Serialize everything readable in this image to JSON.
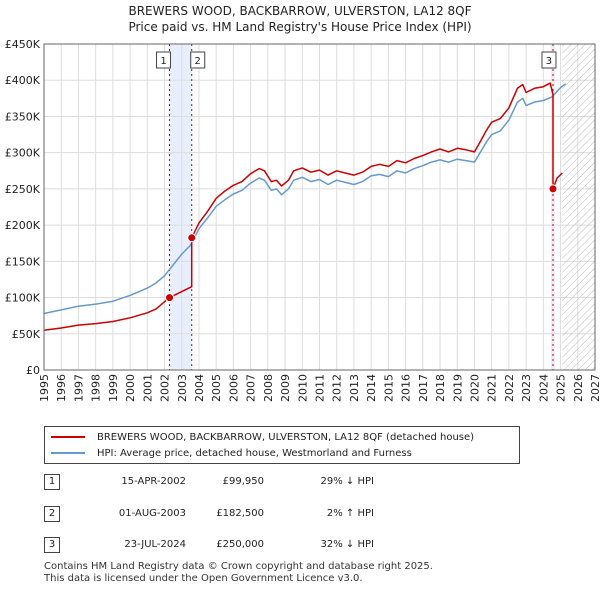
{
  "title_line1": "BREWERS WOOD, BACKBARROW, ULVERSTON, LA12 8QF",
  "title_line2": "Price paid vs. HM Land Registry's House Price Index (HPI)",
  "colors": {
    "property": "#cc0000",
    "hpi": "#6699cc",
    "grid": "#dddddd",
    "shade": "#e8eefb"
  },
  "chart_data": {
    "type": "line",
    "title": "Price paid vs. HM Land Registry's House Price Index (HPI)",
    "xlabel": "",
    "ylabel": "",
    "xlim": [
      1995,
      2027
    ],
    "ylim": [
      0,
      450000
    ],
    "x_ticks": [
      1995,
      1996,
      1997,
      1998,
      1999,
      2000,
      2001,
      2002,
      2003,
      2004,
      2005,
      2006,
      2007,
      2008,
      2009,
      2010,
      2011,
      2012,
      2013,
      2014,
      2015,
      2016,
      2017,
      2018,
      2019,
      2020,
      2021,
      2022,
      2023,
      2024,
      2025,
      2026,
      2027
    ],
    "y_ticks": [
      {
        "value": 0,
        "label": "£0"
      },
      {
        "value": 50000,
        "label": "£50K"
      },
      {
        "value": 100000,
        "label": "£100K"
      },
      {
        "value": 150000,
        "label": "£150K"
      },
      {
        "value": 200000,
        "label": "£200K"
      },
      {
        "value": 250000,
        "label": "£250K"
      },
      {
        "value": 300000,
        "label": "£300K"
      },
      {
        "value": 350000,
        "label": "£350K"
      },
      {
        "value": 400000,
        "label": "£400K"
      },
      {
        "value": 450000,
        "label": "£450K"
      }
    ],
    "hatched_region_from": 2025.1,
    "series": [
      {
        "name": "HPI: Average price, detached house, Westmorland and Furness",
        "color": "#6699cc",
        "x": [
          1995.0,
          1996.0,
          1997.0,
          1998.0,
          1999.0,
          2000.0,
          2001.0,
          2001.5,
          2002.0,
          2002.5,
          2003.0,
          2003.5,
          2004.0,
          2004.5,
          2005.0,
          2005.5,
          2006.0,
          2006.5,
          2007.0,
          2007.5,
          2007.8,
          2008.2,
          2008.5,
          2008.8,
          2009.2,
          2009.5,
          2010.0,
          2010.5,
          2011.0,
          2011.5,
          2012.0,
          2012.5,
          2013.0,
          2013.5,
          2014.0,
          2014.5,
          2015.0,
          2015.5,
          2016.0,
          2016.5,
          2017.0,
          2017.5,
          2018.0,
          2018.5,
          2019.0,
          2019.5,
          2020.0,
          2020.4,
          2020.7,
          2021.0,
          2021.5,
          2022.0,
          2022.5,
          2022.8,
          2023.0,
          2023.5,
          2024.0,
          2024.5,
          2025.0,
          2025.3
        ],
        "values": [
          78000,
          83000,
          88000,
          91000,
          95000,
          103000,
          113000,
          120000,
          130000,
          145000,
          160000,
          172000,
          195000,
          210000,
          226000,
          235000,
          243000,
          248000,
          258000,
          265000,
          262000,
          248000,
          250000,
          242000,
          250000,
          262000,
          266000,
          260000,
          263000,
          256000,
          262000,
          259000,
          256000,
          260000,
          268000,
          270000,
          267000,
          275000,
          272000,
          278000,
          282000,
          287000,
          290000,
          287000,
          291000,
          289000,
          287000,
          303000,
          315000,
          325000,
          330000,
          345000,
          370000,
          375000,
          365000,
          370000,
          372000,
          377000,
          390000,
          395000
        ]
      },
      {
        "name": "BREWERS WOOD, BACKBARROW, ULVERSTON, LA12 8QF (detached house)",
        "color": "#cc0000",
        "x": [
          1995.0,
          1996.0,
          1997.0,
          1998.0,
          1999.0,
          2000.0,
          2001.0,
          2001.5,
          2002.29,
          2002.29,
          2003.58,
          2003.58,
          2004.0,
          2004.5,
          2005.0,
          2005.5,
          2006.0,
          2006.5,
          2007.0,
          2007.5,
          2007.8,
          2008.2,
          2008.5,
          2008.8,
          2009.2,
          2009.5,
          2010.0,
          2010.5,
          2011.0,
          2011.5,
          2012.0,
          2012.5,
          2013.0,
          2013.5,
          2014.0,
          2014.5,
          2015.0,
          2015.5,
          2016.0,
          2016.5,
          2017.0,
          2017.5,
          2018.0,
          2018.5,
          2019.0,
          2019.5,
          2020.0,
          2020.4,
          2020.7,
          2021.0,
          2021.5,
          2022.0,
          2022.5,
          2022.8,
          2023.0,
          2023.5,
          2024.0,
          2024.4,
          2024.56,
          2024.56,
          2024.8,
          2025.1
        ],
        "values": [
          55000,
          58000,
          62000,
          64000,
          67000,
          72000,
          79000,
          84000,
          99950,
          99950,
          115000,
          182500,
          203000,
          219000,
          237000,
          247000,
          255000,
          260000,
          271000,
          278000,
          275000,
          260000,
          262000,
          254000,
          262000,
          275000,
          279000,
          273000,
          276000,
          269000,
          275000,
          272000,
          269000,
          273000,
          281000,
          284000,
          281000,
          289000,
          286000,
          292000,
          296000,
          301000,
          305000,
          301000,
          306000,
          304000,
          301000,
          318000,
          331000,
          342000,
          347000,
          362000,
          389000,
          394000,
          383000,
          389000,
          391000,
          396000,
          380000,
          250000,
          265000,
          272000
        ]
      }
    ],
    "sales": [
      {
        "label": "1",
        "x": 2002.29,
        "value": 99950
      },
      {
        "label": "2",
        "x": 2003.58,
        "value": 182500
      },
      {
        "label": "3",
        "x": 2024.56,
        "value": 250000
      }
    ]
  },
  "legend": {
    "property_label": "BREWERS WOOD, BACKBARROW, ULVERSTON, LA12 8QF (detached house)",
    "hpi_label": "HPI: Average price, detached house, Westmorland and Furness"
  },
  "transactions": [
    {
      "num": "1",
      "date": "15-APR-2002",
      "price": "£99,950",
      "hpi": "29% ↓ HPI"
    },
    {
      "num": "2",
      "date": "01-AUG-2003",
      "price": "£182,500",
      "hpi": "2% ↑ HPI"
    },
    {
      "num": "3",
      "date": "23-JUL-2024",
      "price": "£250,000",
      "hpi": "32% ↓ HPI"
    }
  ],
  "footer_line1": "Contains HM Land Registry data © Crown copyright and database right 2025.",
  "footer_line2": "This data is licensed under the Open Government Licence v3.0."
}
